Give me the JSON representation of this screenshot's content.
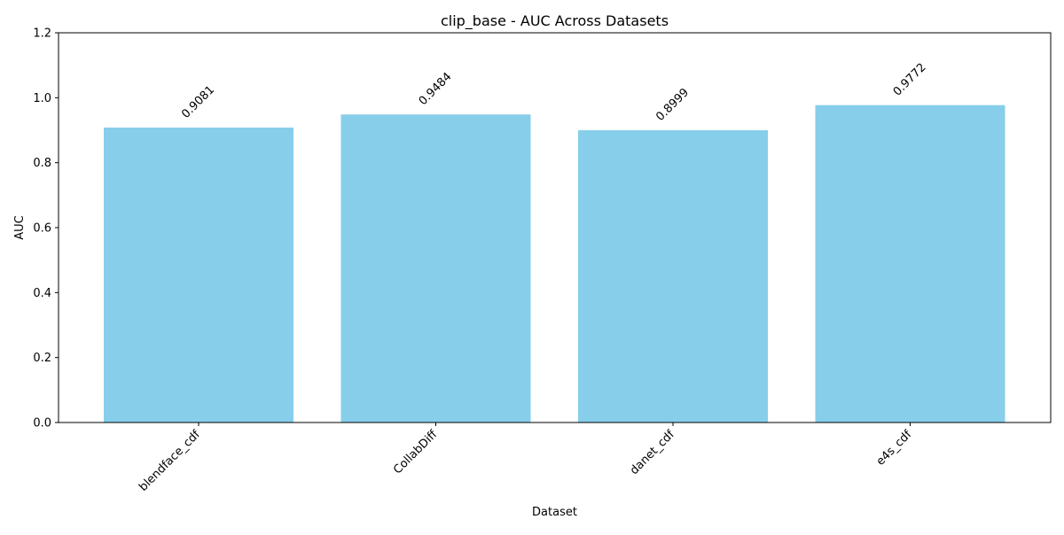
{
  "chart_data": {
    "type": "bar",
    "title": "clip_base - AUC Across Datasets",
    "xlabel": "Dataset",
    "ylabel": "AUC",
    "categories": [
      "blendface_cdf",
      "CollabDiff",
      "danet_cdf",
      "e4s_cdf"
    ],
    "values": [
      0.9081,
      0.9484,
      0.8999,
      0.9772
    ],
    "data_labels": [
      "0.9081",
      "0.9484",
      "0.8999",
      "0.9772"
    ],
    "ylim": [
      0,
      1.2
    ],
    "yticks": [
      0.0,
      0.2,
      0.4,
      0.6,
      0.8,
      1.0,
      1.2
    ],
    "ytick_labels": [
      "0.0",
      "0.2",
      "0.4",
      "0.6",
      "0.8",
      "1.0",
      "1.2"
    ],
    "grid": false,
    "legend": "none",
    "colors": {
      "bar": "#87ceeb",
      "axis": "#000000",
      "background": "#ffffff"
    }
  }
}
